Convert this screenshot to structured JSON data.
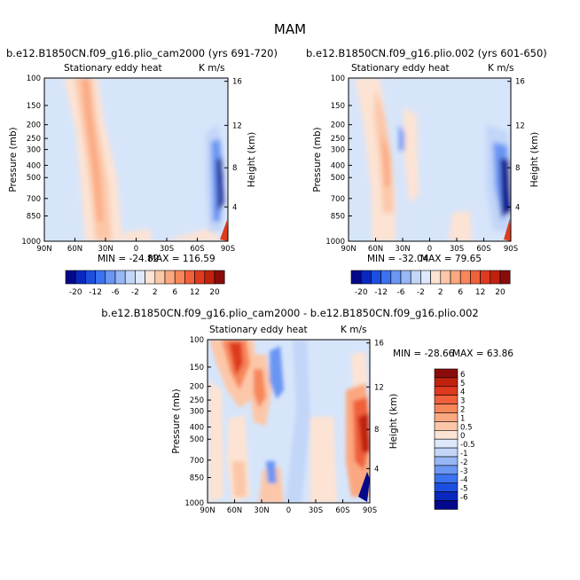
{
  "figure": {
    "title": "MAM",
    "units_label": "K m/s",
    "field_name": "Stationary eddy heat"
  },
  "colors": {
    "cold": [
      "#04088a",
      "#0a28c0",
      "#1c4fe0",
      "#3b72f0",
      "#6b96f3",
      "#97b7f5",
      "#c2d6f8",
      "#dde9fb"
    ],
    "warm": [
      "#fde3d3",
      "#fcc7a8",
      "#fba880",
      "#f7865a",
      "#f0603a",
      "#de3a1f",
      "#c0220f",
      "#8a0c0a"
    ],
    "background": "#d7e5fa"
  },
  "chart_data": [
    {
      "type": "heatmap",
      "title": "b.e12.B1850CN.f09_g16.plio_cam2000 (yrs 691-720)",
      "subtitle_left": "Stationary eddy heat",
      "subtitle_right": "K m/s",
      "xlabel": "",
      "ylabel": "Pressure (mb)",
      "ylabel_right": "Height (km)",
      "xticks": [
        "90N",
        "60N",
        "30N",
        "0",
        "30S",
        "60S",
        "90S"
      ],
      "yticks": [
        "100",
        "150",
        "200",
        "250",
        "300",
        "400",
        "500",
        "700",
        "850",
        "1000"
      ],
      "yticks_right": [
        "16",
        "12",
        "8",
        "4"
      ],
      "min_label": "MIN = -24.82",
      "max_label": "MAX = 116.59",
      "colorbar_ticks": [
        "-20",
        "-12",
        "-6",
        "-2",
        "2",
        "6",
        "12",
        "20"
      ]
    },
    {
      "type": "heatmap",
      "title": "b.e12.B1850CN.f09_g16.plio.002 (yrs 601-650)",
      "subtitle_left": "Stationary eddy heat",
      "subtitle_right": "K m/s",
      "xlabel": "",
      "ylabel": "Pressure (mb)",
      "ylabel_right": "Height (km)",
      "xticks": [
        "90N",
        "60N",
        "30N",
        "0",
        "30S",
        "60S",
        "90S"
      ],
      "yticks": [
        "100",
        "150",
        "200",
        "250",
        "300",
        "400",
        "500",
        "700",
        "850",
        "1000"
      ],
      "yticks_right": [
        "16",
        "12",
        "8",
        "4"
      ],
      "min_label": "MIN = -32.04",
      "max_label": "MAX = 79.65",
      "colorbar_ticks": [
        "-20",
        "-12",
        "-6",
        "-2",
        "2",
        "6",
        "12",
        "20"
      ]
    },
    {
      "type": "heatmap",
      "title": "b.e12.B1850CN.f09_g16.plio_cam2000 - b.e12.B1850CN.f09_g16.plio.002",
      "subtitle_left": "Stationary eddy heat",
      "subtitle_right": "K m/s",
      "xlabel": "",
      "ylabel": "Pressure (mb)",
      "ylabel_right": "Height (km)",
      "xticks": [
        "90N",
        "60N",
        "30N",
        "0",
        "30S",
        "60S",
        "90S"
      ],
      "yticks": [
        "100",
        "150",
        "200",
        "250",
        "300",
        "400",
        "500",
        "700",
        "850",
        "1000"
      ],
      "yticks_right": [
        "16",
        "12",
        "8",
        "4"
      ],
      "min_label": "MIN = -28.66",
      "max_label": "MAX = 63.86",
      "colorbar_ticks": [
        "6",
        "5",
        "4",
        "3",
        "2",
        "1",
        "0.5",
        "0",
        "-0.5",
        "-1",
        "-2",
        "-3",
        "-4",
        "-5",
        "-6"
      ]
    }
  ]
}
